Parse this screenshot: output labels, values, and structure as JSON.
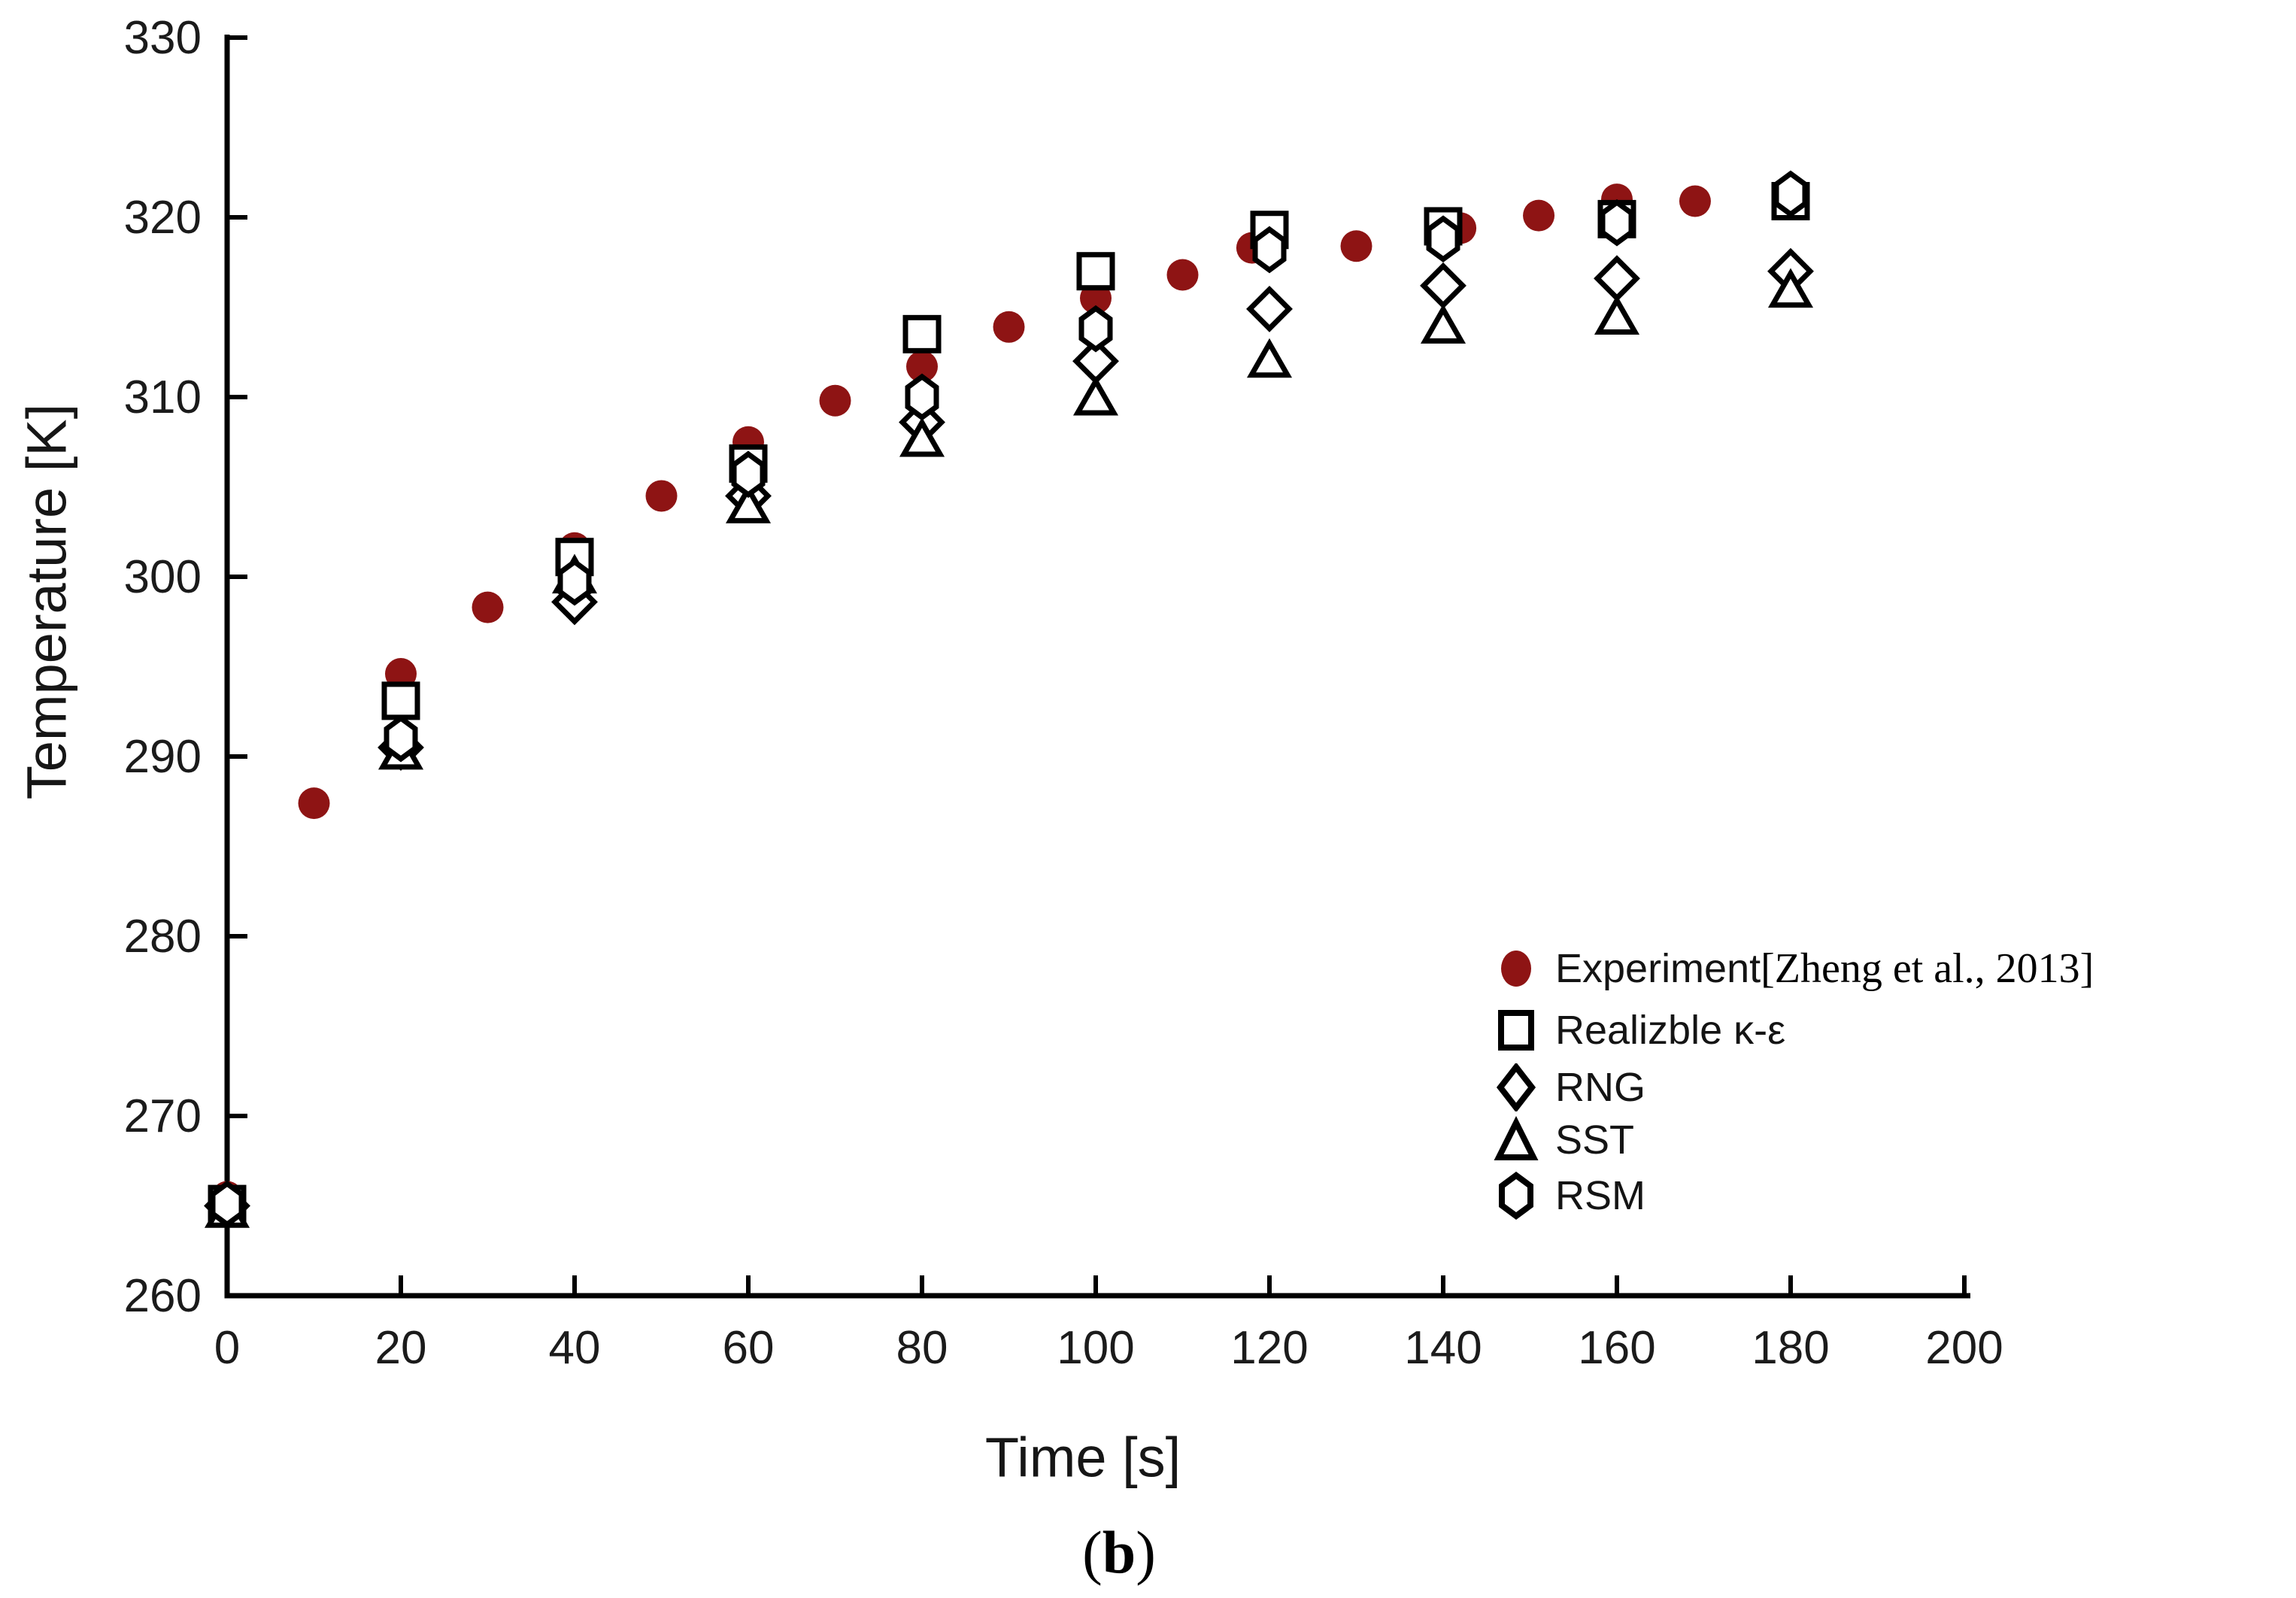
{
  "figure": {
    "caption": {
      "open": "(",
      "letter": "b",
      "close": ")"
    },
    "background": "#ffffff"
  },
  "chart_data": {
    "type": "scatter",
    "title": "",
    "xlabel": "Time [s]",
    "ylabel": "Temperature [K]",
    "xlim": [
      0,
      200
    ],
    "ylim": [
      260,
      330
    ],
    "x_ticks": [
      0,
      20,
      40,
      60,
      80,
      100,
      120,
      140,
      160,
      180,
      200
    ],
    "y_ticks": [
      260,
      270,
      280,
      290,
      300,
      310,
      320,
      330
    ],
    "grid": false,
    "legend_position": "lower-right",
    "series": [
      {
        "name": "Experiment [Zheng et al., 2013]",
        "marker": "filled-circle",
        "color": "#8e1414",
        "x": [
          0,
          10,
          20,
          30,
          40,
          50,
          60,
          70,
          80,
          90,
          100,
          110,
          118,
          130,
          142,
          151,
          160,
          169
        ],
        "y": [
          265.5,
          287.4,
          294.6,
          298.3,
          301.6,
          304.5,
          307.5,
          309.8,
          311.7,
          313.9,
          315.5,
          316.8,
          318.3,
          318.4,
          319.4,
          320.1,
          321.0,
          320.9
        ]
      },
      {
        "name": "Realizble κ-ε",
        "marker": "open-square",
        "color": "#000000",
        "x": [
          0,
          20,
          40,
          60,
          80,
          100,
          120,
          140,
          160,
          180
        ],
        "y": [
          265.1,
          293.1,
          301.1,
          306.3,
          313.5,
          317.0,
          319.3,
          319.5,
          319.9,
          320.9
        ]
      },
      {
        "name": "RNG",
        "marker": "open-diamond",
        "color": "#000000",
        "x": [
          0,
          20,
          40,
          60,
          80,
          100,
          120,
          140,
          160,
          180
        ],
        "y": [
          265.0,
          290.5,
          298.6,
          304.5,
          308.6,
          312.0,
          314.9,
          316.2,
          316.6,
          317.0
        ]
      },
      {
        "name": "SST",
        "marker": "open-triangle",
        "color": "#000000",
        "x": [
          0,
          20,
          40,
          60,
          80,
          100,
          120,
          140,
          160,
          180
        ],
        "y": [
          264.8,
          290.3,
          300.1,
          304.0,
          307.7,
          310.0,
          312.1,
          314.0,
          314.5,
          316.0
        ]
      },
      {
        "name": "RSM",
        "marker": "open-hexagon",
        "color": "#000000",
        "x": [
          0,
          20,
          40,
          60,
          80,
          100,
          120,
          140,
          160,
          180
        ],
        "y": [
          265.1,
          291.0,
          299.7,
          305.7,
          310.0,
          313.8,
          318.2,
          318.8,
          319.7,
          321.3
        ]
      }
    ]
  },
  "legend": {
    "items": [
      {
        "label": "Experiment",
        "suffix": " [Zheng et al., 2013]",
        "marker": "filled-circle"
      },
      {
        "label": "Realizble κ-ε",
        "suffix": "",
        "marker": "open-square"
      },
      {
        "label": "RNG",
        "suffix": "",
        "marker": "open-diamond"
      },
      {
        "label": "SST",
        "suffix": "",
        "marker": "open-triangle"
      },
      {
        "label": "RSM",
        "suffix": "",
        "marker": "open-hexagon"
      }
    ]
  },
  "colors": {
    "experiment": "#8e1414",
    "models": "#000000",
    "text": "#161616",
    "axis": "#000000"
  }
}
